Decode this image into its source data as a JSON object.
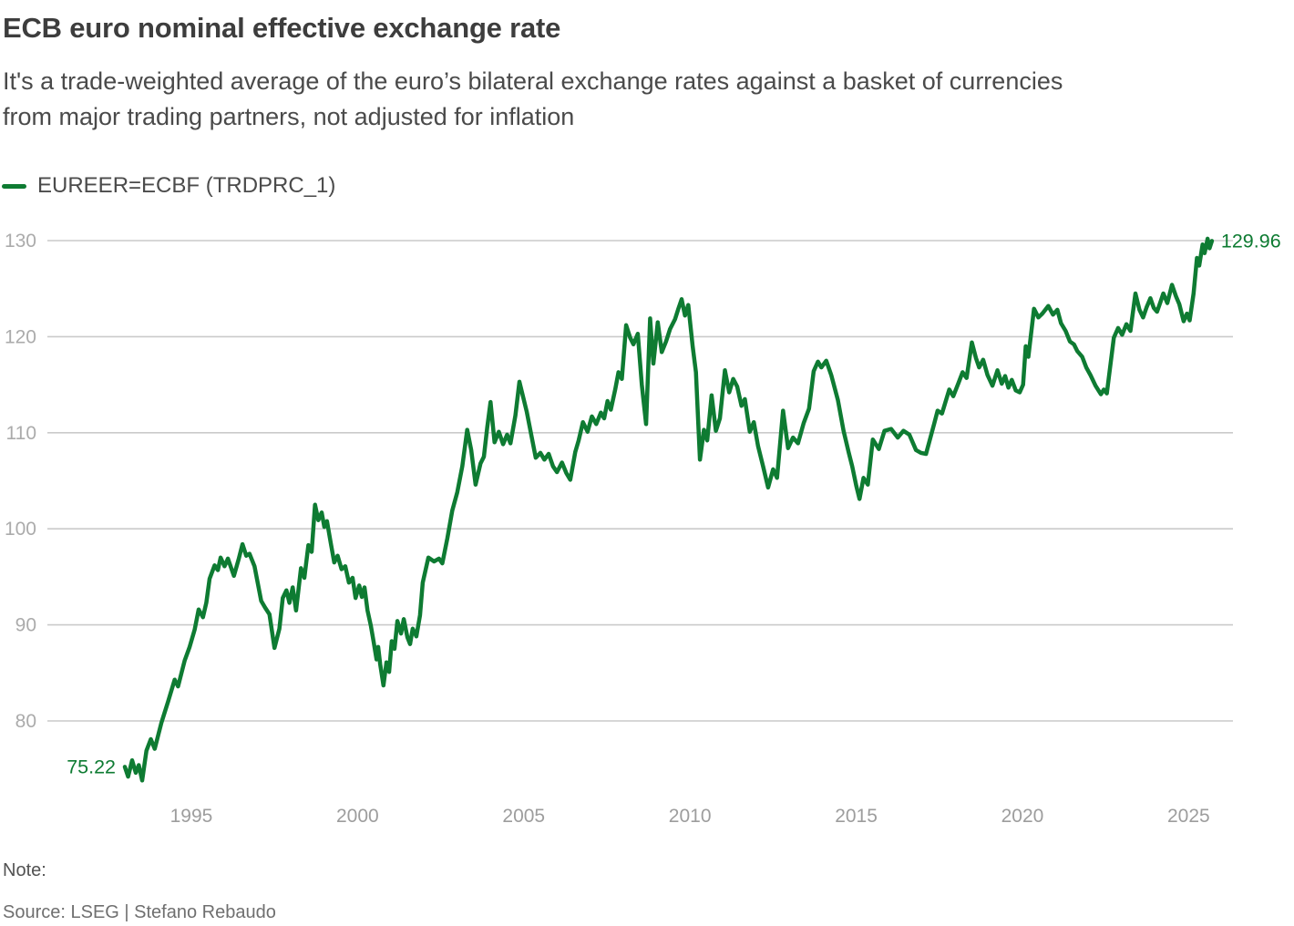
{
  "header": {
    "title": "ECB euro nominal effective exchange rate",
    "subtitle": "It's a trade-weighted average of the euro’s bilateral exchange rates against a basket of currencies\nfrom major trading partners, not adjusted for inflation"
  },
  "legend": {
    "label": "EUREER=ECBF (TRDPRC_1)",
    "color": "#0e7b32"
  },
  "footer": {
    "note_label": "Note:",
    "source": "Source: LSEG | Stefano Rebaudo"
  },
  "chart_data": {
    "type": "line",
    "title": "ECB euro nominal effective exchange rate",
    "xlabel": "",
    "ylabel": "",
    "grid": "horizontal-only",
    "legend_position": "top-left",
    "x_ticks": [
      1995,
      2000,
      2005,
      2010,
      2015,
      2020,
      2025
    ],
    "y_ticks": [
      80,
      90,
      100,
      110,
      120,
      130
    ],
    "xlim": [
      1993.0,
      2025.7
    ],
    "ylim": [
      73,
      131
    ],
    "annotations": {
      "first_value": "75.22",
      "last_value": "129.96"
    },
    "colors": {
      "line": "#0e7b32",
      "gridline": "#cacaca",
      "y_tick_label": "#ababab",
      "x_tick_label": "#9d9d9d"
    },
    "series": [
      {
        "name": "EUREER=ECBF (TRDPRC_1)",
        "color": "#0e7b32",
        "x": [
          1993.0,
          1993.1,
          1993.22,
          1993.33,
          1993.42,
          1993.52,
          1993.65,
          1993.78,
          1993.9,
          1994.1,
          1994.3,
          1994.5,
          1994.6,
          1994.8,
          1994.95,
          1995.1,
          1995.22,
          1995.35,
          1995.45,
          1995.55,
          1995.7,
          1995.8,
          1995.88,
          1996.0,
          1996.1,
          1996.28,
          1996.42,
          1996.54,
          1996.65,
          1996.75,
          1996.9,
          1997.1,
          1997.22,
          1997.35,
          1997.5,
          1997.65,
          1997.75,
          1997.86,
          1997.95,
          1998.05,
          1998.15,
          1998.3,
          1998.4,
          1998.52,
          1998.62,
          1998.72,
          1998.82,
          1998.92,
          1999.0,
          1999.08,
          1999.2,
          1999.3,
          1999.4,
          1999.52,
          1999.63,
          1999.74,
          1999.85,
          1999.94,
          2000.05,
          2000.13,
          2000.21,
          2000.3,
          2000.4,
          2000.48,
          2000.57,
          2000.62,
          2000.68,
          2000.78,
          2000.87,
          2000.95,
          2001.03,
          2001.11,
          2001.2,
          2001.31,
          2001.39,
          2001.5,
          2001.58,
          2001.66,
          2001.77,
          2001.88,
          2001.96,
          2002.13,
          2002.3,
          2002.45,
          2002.55,
          2002.7,
          2002.85,
          2003.0,
          2003.15,
          2003.3,
          2003.42,
          2003.55,
          2003.7,
          2003.8,
          2003.9,
          2004.0,
          2004.12,
          2004.25,
          2004.38,
          2004.5,
          2004.6,
          2004.75,
          2004.87,
          2005.09,
          2005.36,
          2005.5,
          2005.62,
          2005.75,
          2005.88,
          2006.0,
          2006.15,
          2006.28,
          2006.4,
          2006.55,
          2006.65,
          2006.78,
          2006.92,
          2007.05,
          2007.18,
          2007.32,
          2007.42,
          2007.52,
          2007.62,
          2007.75,
          2007.85,
          2007.95,
          2008.08,
          2008.2,
          2008.3,
          2008.43,
          2008.55,
          2008.68,
          2008.8,
          2008.9,
          2009.03,
          2009.15,
          2009.28,
          2009.4,
          2009.55,
          2009.65,
          2009.75,
          2009.85,
          2009.95,
          2010.08,
          2010.18,
          2010.3,
          2010.42,
          2010.52,
          2010.65,
          2010.78,
          2010.9,
          2011.05,
          2011.18,
          2011.3,
          2011.42,
          2011.55,
          2011.65,
          2011.8,
          2011.92,
          2012.05,
          2012.2,
          2012.35,
          2012.5,
          2012.62,
          2012.8,
          2012.95,
          2013.1,
          2013.25,
          2013.42,
          2013.58,
          2013.72,
          2013.85,
          2013.95,
          2014.1,
          2014.25,
          2014.45,
          2014.62,
          2014.77,
          2014.88,
          2015.0,
          2015.1,
          2015.22,
          2015.35,
          2015.5,
          2015.68,
          2015.85,
          2016.05,
          2016.25,
          2016.42,
          2016.6,
          2016.8,
          2016.95,
          2017.1,
          2017.35,
          2017.45,
          2017.58,
          2017.8,
          2017.92,
          2018.08,
          2018.2,
          2018.32,
          2018.48,
          2018.6,
          2018.7,
          2018.82,
          2018.95,
          2019.1,
          2019.25,
          2019.38,
          2019.48,
          2019.58,
          2019.68,
          2019.8,
          2019.92,
          2020.02,
          2020.1,
          2020.18,
          2020.35,
          2020.48,
          2020.6,
          2020.78,
          2020.92,
          2021.05,
          2021.16,
          2021.3,
          2021.43,
          2021.55,
          2021.65,
          2021.8,
          2021.92,
          2022.05,
          2022.2,
          2022.36,
          2022.45,
          2022.54,
          2022.75,
          2022.88,
          2023.0,
          2023.13,
          2023.25,
          2023.4,
          2023.52,
          2023.63,
          2023.74,
          2023.85,
          2023.95,
          2024.05,
          2024.15,
          2024.24,
          2024.36,
          2024.5,
          2024.62,
          2024.72,
          2024.85,
          2024.95,
          2025.03,
          2025.15,
          2025.25,
          2025.32,
          2025.42,
          2025.48,
          2025.57,
          2025.63,
          2025.7
        ],
        "y": [
          75.22,
          74.2,
          75.9,
          74.6,
          75.4,
          73.8,
          76.9,
          78.1,
          77.1,
          79.8,
          82.0,
          84.3,
          83.6,
          86.3,
          87.7,
          89.5,
          91.6,
          90.8,
          92.3,
          94.8,
          96.2,
          95.7,
          97.0,
          96.1,
          96.9,
          95.1,
          96.8,
          98.4,
          97.2,
          97.4,
          96.1,
          92.5,
          91.8,
          91.1,
          87.6,
          89.6,
          92.8,
          93.6,
          92.3,
          93.9,
          91.5,
          95.9,
          94.9,
          98.3,
          97.6,
          102.5,
          100.9,
          101.7,
          100.2,
          100.8,
          98.4,
          96.5,
          97.2,
          95.8,
          96.1,
          94.4,
          94.9,
          92.8,
          94.1,
          92.9,
          93.9,
          91.5,
          89.9,
          88.3,
          86.4,
          87.7,
          85.9,
          83.7,
          86.1,
          85.1,
          88.3,
          87.5,
          90.4,
          89.1,
          90.6,
          88.7,
          88.0,
          89.6,
          88.8,
          91.0,
          94.4,
          97.0,
          96.6,
          96.9,
          96.4,
          99.0,
          101.9,
          103.8,
          106.5,
          110.3,
          108.2,
          104.6,
          106.8,
          107.5,
          110.5,
          113.2,
          109.0,
          110.1,
          108.8,
          109.8,
          108.9,
          111.8,
          115.3,
          112.2,
          107.4,
          107.9,
          107.2,
          107.8,
          106.5,
          105.9,
          106.9,
          105.8,
          105.1,
          108.0,
          109.2,
          111.1,
          110.1,
          111.7,
          110.9,
          112.1,
          111.5,
          113.3,
          112.4,
          114.5,
          116.3,
          115.6,
          121.2,
          119.9,
          119.2,
          120.3,
          115.0,
          110.9,
          121.9,
          117.2,
          121.5,
          118.4,
          119.5,
          120.8,
          121.8,
          122.9,
          123.9,
          122.2,
          123.3,
          119.0,
          116.3,
          107.2,
          110.3,
          109.2,
          113.9,
          110.2,
          111.5,
          116.5,
          114.2,
          115.6,
          114.8,
          112.8,
          113.5,
          110.1,
          111.1,
          108.6,
          106.5,
          104.3,
          106.2,
          105.3,
          112.3,
          108.4,
          109.5,
          108.9,
          111.0,
          112.5,
          116.4,
          117.4,
          116.8,
          117.5,
          116.0,
          113.4,
          110.2,
          108.0,
          106.5,
          104.5,
          103.1,
          105.3,
          104.6,
          109.3,
          108.3,
          110.2,
          110.4,
          109.5,
          110.2,
          109.8,
          108.2,
          107.9,
          107.8,
          111.0,
          112.3,
          112.0,
          114.5,
          113.8,
          115.2,
          116.3,
          115.7,
          119.4,
          117.8,
          116.8,
          117.6,
          116.0,
          114.9,
          116.5,
          115.1,
          115.9,
          114.7,
          115.5,
          114.4,
          114.2,
          115.0,
          119.0,
          117.9,
          122.9,
          122.0,
          122.4,
          123.2,
          122.3,
          122.8,
          121.4,
          120.6,
          119.5,
          119.2,
          118.5,
          117.9,
          116.8,
          116.0,
          114.9,
          114.0,
          114.5,
          114.1,
          119.9,
          120.9,
          120.2,
          121.3,
          120.6,
          124.5,
          122.8,
          122.0,
          123.1,
          124.0,
          123.0,
          122.6,
          123.6,
          124.5,
          123.5,
          125.4,
          124.2,
          123.4,
          121.6,
          122.4,
          121.7,
          124.5,
          128.2,
          127.4,
          129.6,
          128.7,
          130.2,
          129.2,
          129.96
        ]
      }
    ]
  }
}
